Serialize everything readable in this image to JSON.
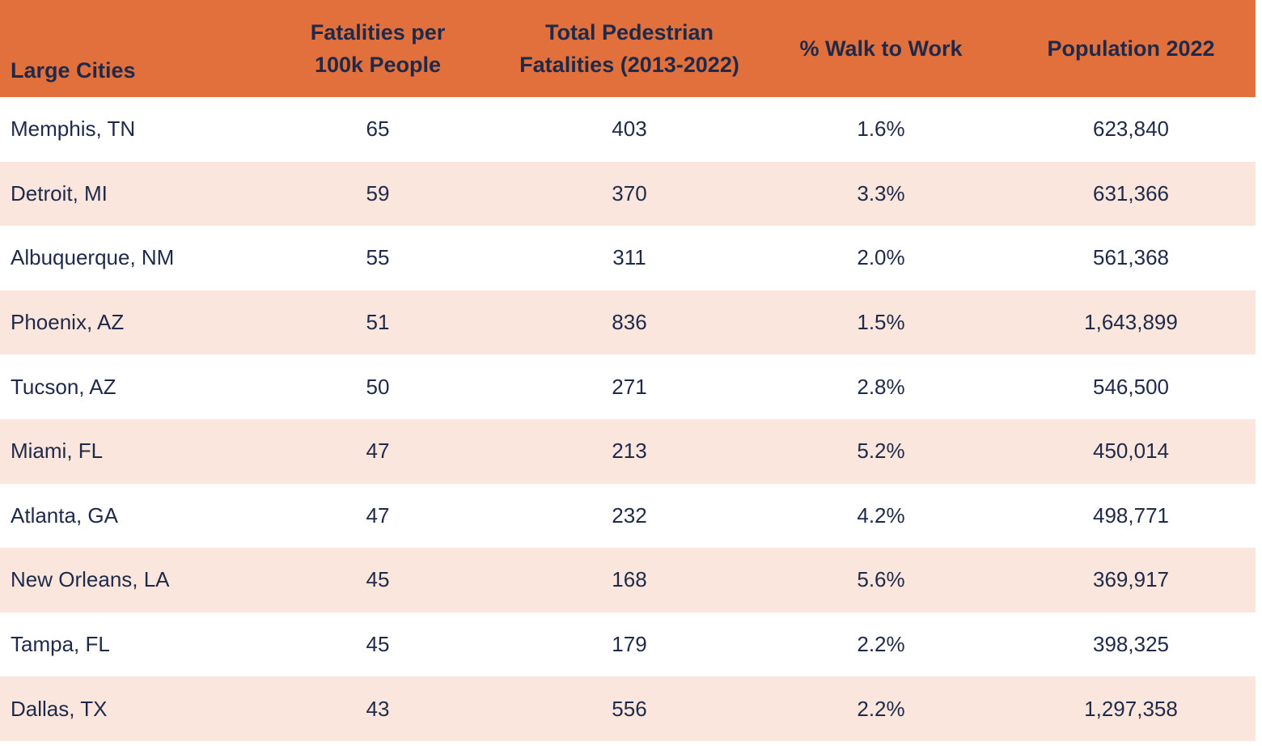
{
  "colors": {
    "header_background": "#e1703c",
    "alternating_row_background": "#fae6dc",
    "row_background": "#ffffff",
    "text": "#1f2a4a"
  },
  "chart_data": {
    "type": "table",
    "title": "",
    "columns": [
      "Large Cities",
      "Fatalities per 100k People",
      "Total Pedestrian Fatalities (2013-2022)",
      "% Walk to Work",
      "Population 2022"
    ],
    "header_lines": [
      [
        "Large Cities"
      ],
      [
        "Fatalities per",
        "100k People"
      ],
      [
        "Total Pedestrian",
        "Fatalities (2013-2022)"
      ],
      [
        "% Walk to Work"
      ],
      [
        "Population 2022"
      ]
    ],
    "rows": [
      [
        "Memphis, TN",
        "65",
        "403",
        "1.6%",
        "623,840"
      ],
      [
        "Detroit, MI",
        "59",
        "370",
        "3.3%",
        "631,366"
      ],
      [
        "Albuquerque, NM",
        "55",
        "311",
        "2.0%",
        "561,368"
      ],
      [
        "Phoenix, AZ",
        "51",
        "836",
        "1.5%",
        "1,643,899"
      ],
      [
        "Tucson, AZ",
        "50",
        "271",
        "2.8%",
        "546,500"
      ],
      [
        "Miami, FL",
        "47",
        "213",
        "5.2%",
        "450,014"
      ],
      [
        "Atlanta, GA",
        "47",
        "232",
        "4.2%",
        "498,771"
      ],
      [
        "New Orleans, LA",
        "45",
        "168",
        "5.6%",
        "369,917"
      ],
      [
        "Tampa, FL",
        "45",
        "179",
        "2.2%",
        "398,325"
      ],
      [
        "Dallas, TX",
        "43",
        "556",
        "2.2%",
        "1,297,358"
      ]
    ]
  }
}
